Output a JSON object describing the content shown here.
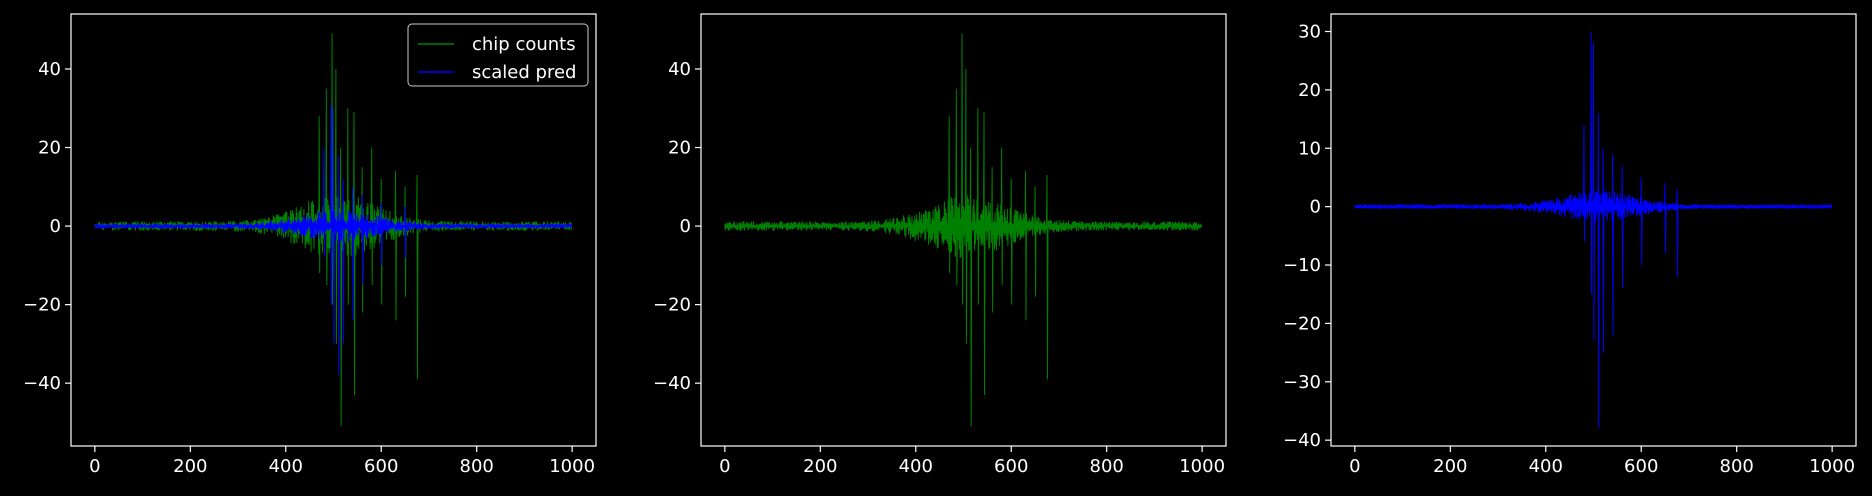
{
  "figure": {
    "background": "#000000",
    "foreground": "#ffffff"
  },
  "chart_data": [
    {
      "type": "line",
      "x_range": [
        0,
        999
      ],
      "xlim": [
        -50,
        1050
      ],
      "ylim": [
        -56,
        54
      ],
      "xticks": [
        0,
        200,
        400,
        600,
        800,
        1000
      ],
      "yticks": [
        -40,
        -20,
        0,
        20,
        40
      ],
      "ytick_labels": [
        "−40",
        "−20",
        "0",
        "20",
        "40"
      ],
      "grid": false,
      "legend": {
        "placement": "top-right",
        "entries": [
          {
            "label": "chip counts",
            "color": "#008000"
          },
          {
            "label": "scaled pred",
            "color": "#0000ff"
          }
        ]
      },
      "series": [
        {
          "name": "chip counts",
          "color": "#008000",
          "noise": 1.2,
          "peaks": [
            [
              470,
              28,
              -12
            ],
            [
              485,
              35,
              -15
            ],
            [
              497,
              49,
              -20
            ],
            [
              505,
              40,
              -30
            ],
            [
              515,
              20,
              -51
            ],
            [
              530,
              30,
              -20
            ],
            [
              543,
              29,
              -43
            ],
            [
              560,
              15,
              -22
            ],
            [
              580,
              20,
              -15
            ],
            [
              600,
              12,
              -20
            ],
            [
              630,
              14,
              -24
            ],
            [
              650,
              10,
              -18
            ],
            [
              675,
              13,
              -39
            ]
          ]
        },
        {
          "name": "scaled pred",
          "color": "#0000ff",
          "noise": 0.6,
          "peaks": [
            [
              480,
              20,
              -8
            ],
            [
              495,
              31,
              -20
            ],
            [
              500,
              30,
              -30
            ],
            [
              510,
              18,
              -38
            ],
            [
              520,
              12,
              -30
            ],
            [
              540,
              10,
              -24
            ],
            [
              560,
              8,
              -15
            ],
            [
              600,
              6,
              -10
            ],
            [
              650,
              5,
              -8
            ]
          ]
        }
      ]
    },
    {
      "type": "line",
      "x_range": [
        0,
        999
      ],
      "xlim": [
        -50,
        1050
      ],
      "ylim": [
        -56,
        54
      ],
      "xticks": [
        0,
        200,
        400,
        600,
        800,
        1000
      ],
      "yticks": [
        -40,
        -20,
        0,
        20,
        40
      ],
      "ytick_labels": [
        "−40",
        "−20",
        "0",
        "20",
        "40"
      ],
      "grid": false,
      "series": [
        {
          "color": "#008000",
          "noise": 1.2,
          "peaks": [
            [
              470,
              28,
              -12
            ],
            [
              485,
              35,
              -15
            ],
            [
              497,
              49,
              -20
            ],
            [
              505,
              40,
              -30
            ],
            [
              515,
              20,
              -51
            ],
            [
              530,
              30,
              -20
            ],
            [
              543,
              29,
              -43
            ],
            [
              560,
              15,
              -22
            ],
            [
              580,
              20,
              -15
            ],
            [
              600,
              12,
              -20
            ],
            [
              630,
              14,
              -24
            ],
            [
              650,
              10,
              -18
            ],
            [
              675,
              13,
              -39
            ]
          ]
        }
      ]
    },
    {
      "type": "line",
      "x_range": [
        0,
        999
      ],
      "xlim": [
        -50,
        1050
      ],
      "ylim": [
        -41,
        33
      ],
      "xticks": [
        0,
        200,
        400,
        600,
        800,
        1000
      ],
      "yticks": [
        -40,
        -30,
        -20,
        -10,
        0,
        10,
        20,
        30
      ],
      "ytick_labels": [
        "−40",
        "−30",
        "−20",
        "−10",
        "0",
        "10",
        "20",
        "30"
      ],
      "grid": false,
      "series": [
        {
          "color": "#0000ff",
          "noise": 0.4,
          "peaks": [
            [
              480,
              14,
              -6
            ],
            [
              495,
              30,
              -15
            ],
            [
              500,
              28,
              -23
            ],
            [
              510,
              16,
              -38
            ],
            [
              520,
              10,
              -25
            ],
            [
              540,
              9,
              -22
            ],
            [
              560,
              7,
              -14
            ],
            [
              600,
              5,
              -10
            ],
            [
              650,
              4,
              -8
            ],
            [
              675,
              3,
              -12
            ]
          ]
        }
      ]
    }
  ]
}
